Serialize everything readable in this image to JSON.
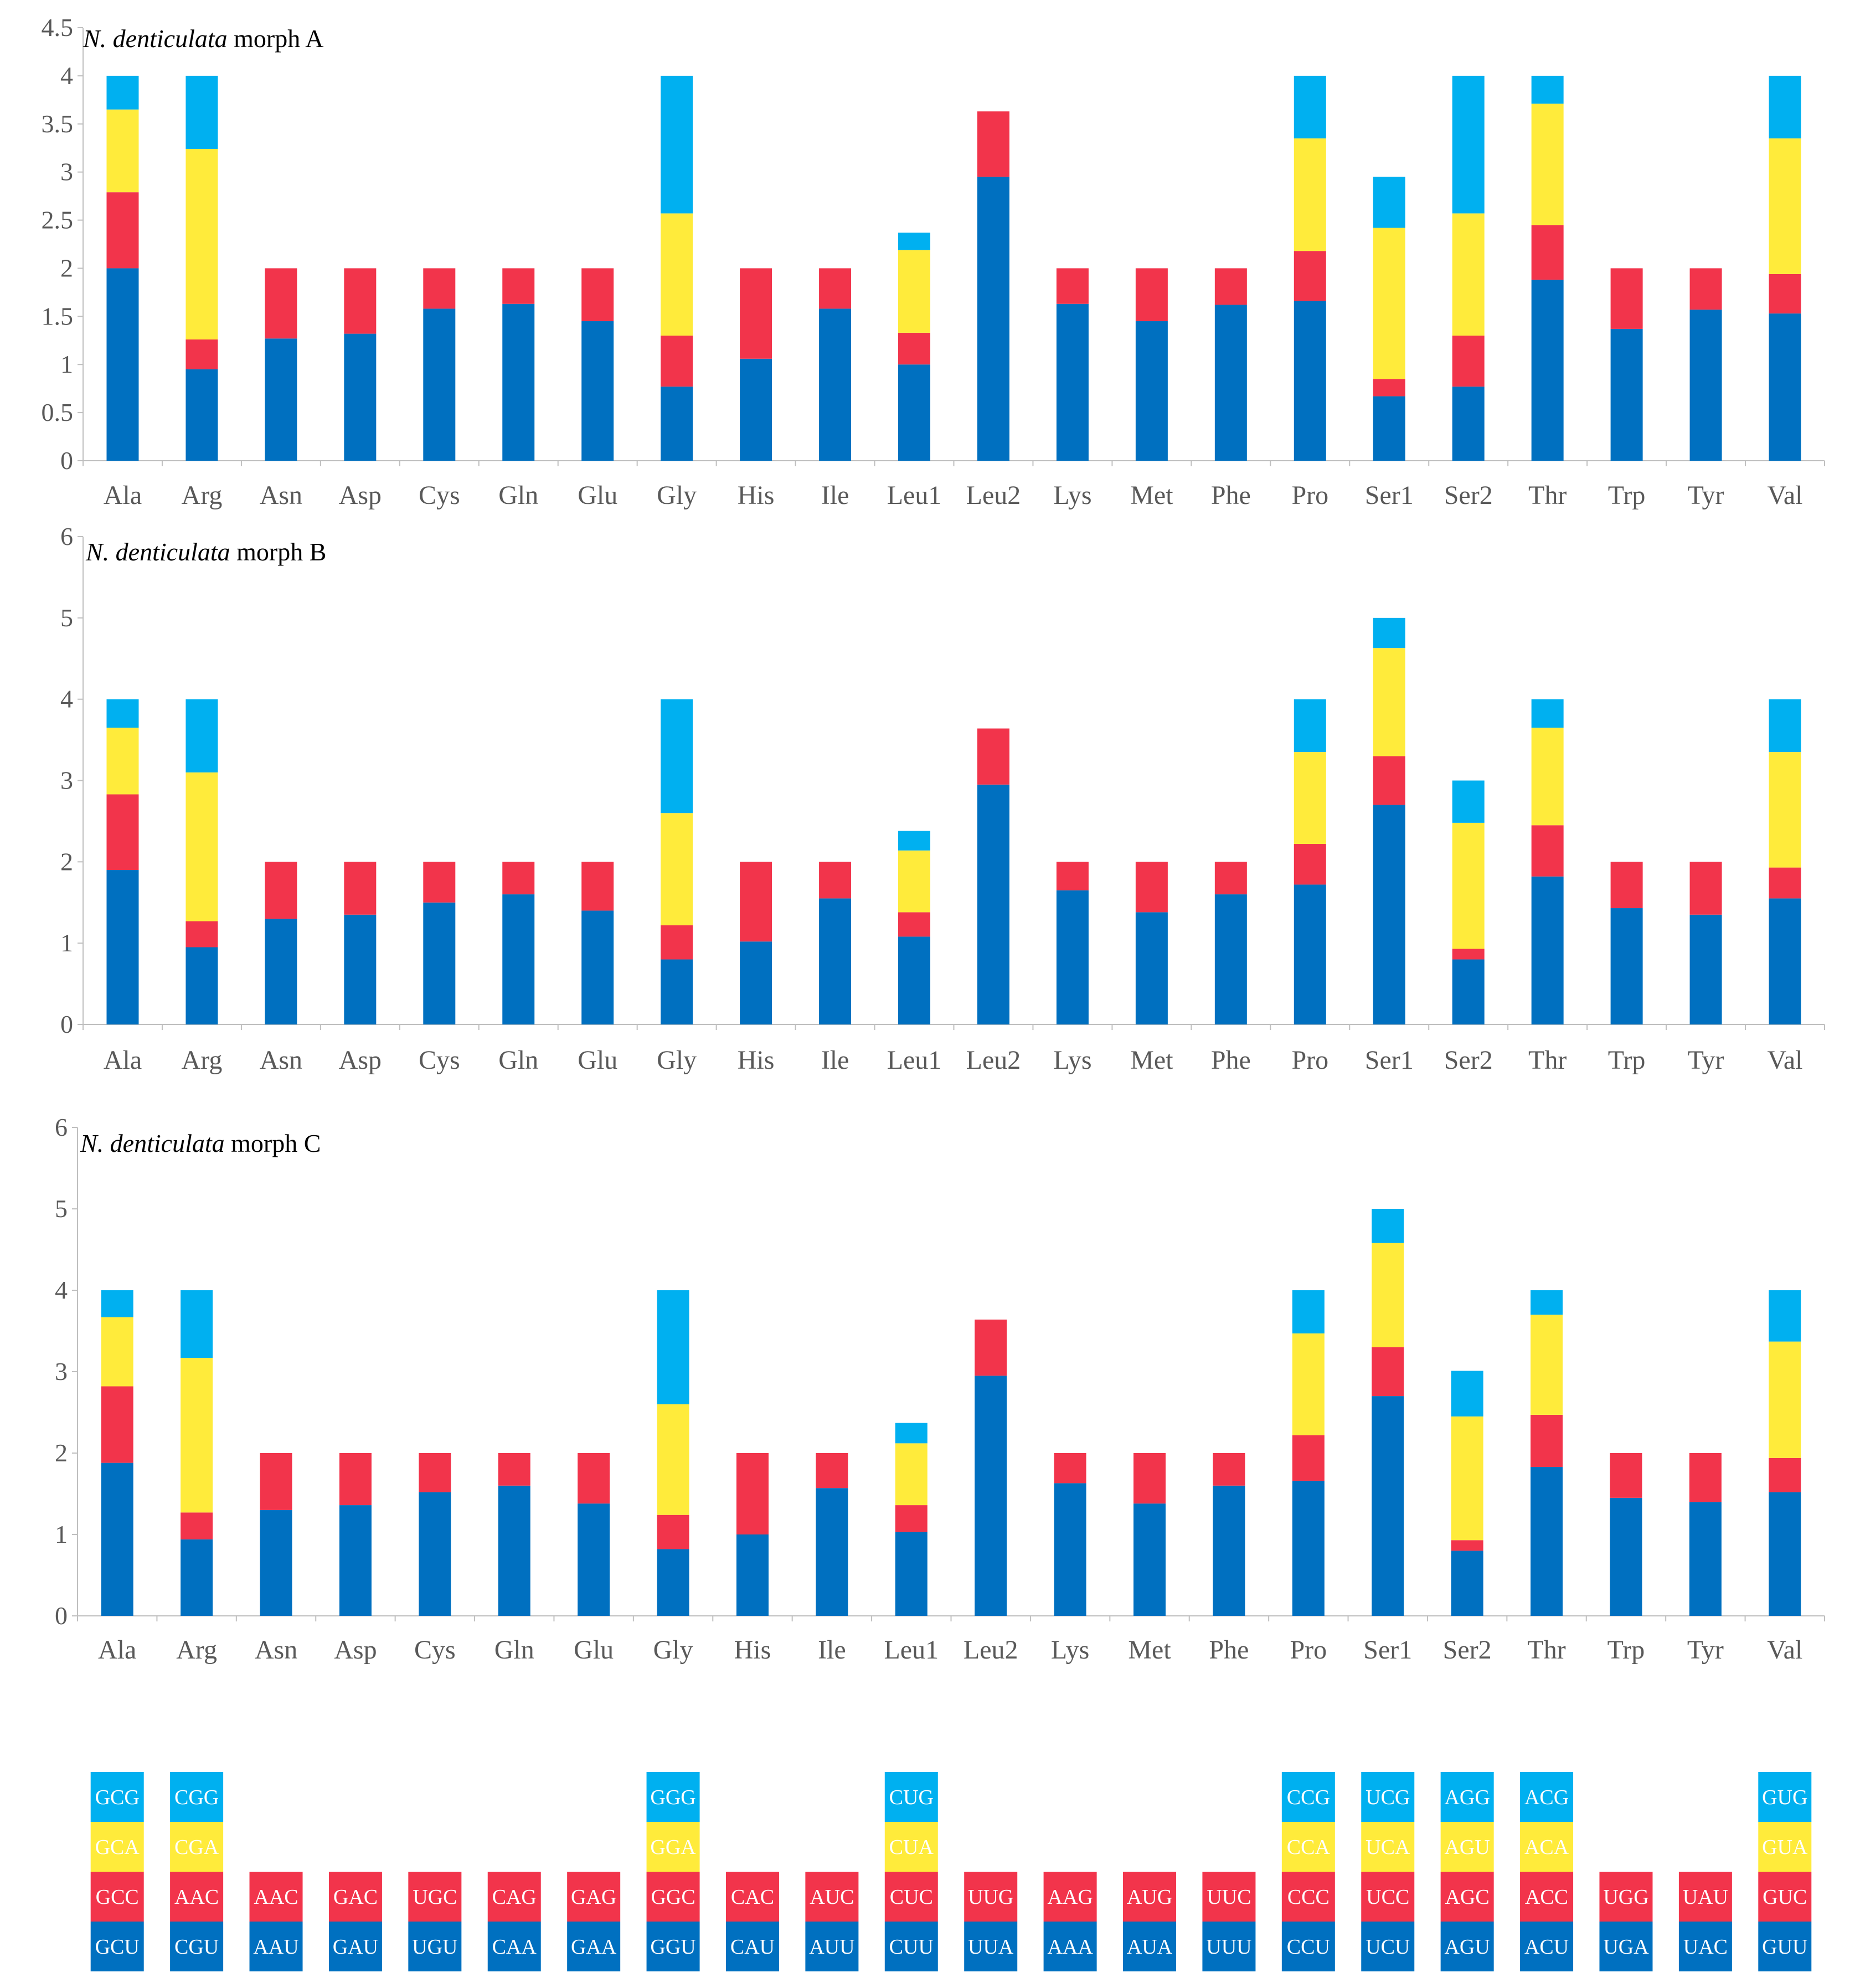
{
  "colors": {
    "third_codon": "#00B0F0",
    "second_codon": "#FFEB3B",
    "first_codon": "#F2344B",
    "base_codon": "#0070C0",
    "axis": "#BFBFBF",
    "tick_text": "#595959"
  },
  "chart_data": [
    {
      "type": "bar",
      "stacked": true,
      "title_italic": "N. denticulata",
      "title_rest": " morph A",
      "categories": [
        "Ala",
        "Arg",
        "Asn",
        "Asp",
        "Cys",
        "Gln",
        "Glu",
        "Gly",
        "His",
        "Ile",
        "Leu1",
        "Leu2",
        "Lys",
        "Met",
        "Phe",
        "Pro",
        "Ser1",
        "Ser2",
        "Thr",
        "Trp",
        "Tyr",
        "Val"
      ],
      "ylim": [
        0,
        4.5
      ],
      "yticks": [
        "0",
        "0.5",
        "1",
        "1.5",
        "2",
        "2.5",
        "3",
        "3.5",
        "4",
        "4.5"
      ],
      "grid": false,
      "series": [
        {
          "values": [
            2.0,
            0.95,
            1.27,
            1.32,
            1.58,
            1.63,
            1.45,
            0.77,
            1.06,
            1.58,
            1.0,
            2.95,
            1.63,
            1.45,
            1.62,
            1.66,
            0.67,
            0.77,
            1.88,
            1.37,
            1.57,
            1.53
          ]
        },
        {
          "values": [
            0.79,
            0.31,
            0.73,
            0.68,
            0.42,
            0.37,
            0.55,
            0.53,
            0.94,
            0.42,
            0.33,
            0.68,
            0.37,
            0.55,
            0.38,
            0.52,
            0.18,
            0.53,
            0.57,
            0.63,
            0.43,
            0.41
          ]
        },
        {
          "values": [
            0.86,
            1.98,
            0,
            0,
            0,
            0,
            0,
            1.27,
            0,
            0,
            0.86,
            0,
            0,
            0,
            0,
            1.17,
            1.57,
            1.27,
            1.26,
            0,
            0,
            1.41
          ]
        },
        {
          "values": [
            0.35,
            0.76,
            0,
            0,
            0,
            0,
            0,
            1.43,
            0,
            0,
            0.18,
            0,
            0,
            0,
            0,
            0.65,
            0.53,
            1.43,
            0.29,
            0,
            0,
            0.65
          ]
        }
      ]
    },
    {
      "type": "bar",
      "stacked": true,
      "title_italic": "N. denticulata",
      "title_rest": " morph B",
      "categories": [
        "Ala",
        "Arg",
        "Asn",
        "Asp",
        "Cys",
        "Gln",
        "Glu",
        "Gly",
        "His",
        "Ile",
        "Leu1",
        "Leu2",
        "Lys",
        "Met",
        "Phe",
        "Pro",
        "Ser1",
        "Ser2",
        "Thr",
        "Trp",
        "Tyr",
        "Val"
      ],
      "ylim": [
        0,
        6
      ],
      "yticks": [
        "0",
        "1",
        "2",
        "3",
        "4",
        "5",
        "6"
      ],
      "grid": false,
      "series": [
        {
          "values": [
            1.9,
            0.95,
            1.3,
            1.35,
            1.5,
            1.6,
            1.4,
            0.8,
            1.02,
            1.55,
            1.08,
            2.95,
            1.65,
            1.38,
            1.6,
            1.72,
            2.7,
            0.8,
            1.82,
            1.43,
            1.35,
            1.55
          ]
        },
        {
          "values": [
            0.93,
            0.32,
            0.7,
            0.65,
            0.5,
            0.4,
            0.6,
            0.42,
            0.98,
            0.45,
            0.3,
            0.69,
            0.35,
            0.62,
            0.4,
            0.5,
            0.6,
            0.13,
            0.63,
            0.57,
            0.65,
            0.38
          ]
        },
        {
          "values": [
            0.82,
            1.83,
            0,
            0,
            0,
            0,
            0,
            1.38,
            0,
            0,
            0.76,
            0,
            0,
            0,
            0,
            1.13,
            1.33,
            1.55,
            1.2,
            0,
            0,
            1.42
          ]
        },
        {
          "values": [
            0.35,
            0.9,
            0,
            0,
            0,
            0,
            0,
            1.4,
            0,
            0,
            0.24,
            0,
            0,
            0,
            0,
            0.65,
            0.37,
            0.52,
            0.35,
            0,
            0,
            0.65
          ]
        }
      ]
    },
    {
      "type": "bar",
      "stacked": true,
      "title_italic": "N. denticulata",
      "title_rest": " morph C",
      "categories": [
        "Ala",
        "Arg",
        "Asn",
        "Asp",
        "Cys",
        "Gln",
        "Glu",
        "Gly",
        "His",
        "Ile",
        "Leu1",
        "Leu2",
        "Lys",
        "Met",
        "Phe",
        "Pro",
        "Ser1",
        "Ser2",
        "Thr",
        "Trp",
        "Tyr",
        "Val"
      ],
      "ylim": [
        0,
        6
      ],
      "yticks": [
        "0",
        "1",
        "2",
        "3",
        "4",
        "5",
        "6"
      ],
      "grid": false,
      "series": [
        {
          "values": [
            1.88,
            0.94,
            1.3,
            1.36,
            1.52,
            1.6,
            1.38,
            0.82,
            1.0,
            1.57,
            1.03,
            2.95,
            1.63,
            1.38,
            1.6,
            1.66,
            2.7,
            0.8,
            1.83,
            1.45,
            1.4,
            1.52
          ]
        },
        {
          "values": [
            0.94,
            0.33,
            0.7,
            0.64,
            0.48,
            0.4,
            0.62,
            0.42,
            1.0,
            0.43,
            0.33,
            0.69,
            0.37,
            0.62,
            0.4,
            0.56,
            0.6,
            0.13,
            0.64,
            0.55,
            0.6,
            0.42
          ]
        },
        {
          "values": [
            0.85,
            1.9,
            0,
            0,
            0,
            0,
            0,
            1.36,
            0,
            0,
            0.76,
            0,
            0,
            0,
            0,
            1.25,
            1.28,
            1.52,
            1.23,
            0,
            0,
            1.43
          ]
        },
        {
          "values": [
            0.33,
            0.83,
            0,
            0,
            0,
            0,
            0,
            1.4,
            0,
            0,
            0.25,
            0,
            0,
            0,
            0,
            0.53,
            0.42,
            0.56,
            0.3,
            0,
            0,
            0.63
          ]
        }
      ]
    }
  ],
  "codon_legend": [
    [
      "GCU",
      "GCC",
      "GCA",
      "GCG"
    ],
    [
      "CGU",
      "AAC",
      "CGA",
      "CGG"
    ],
    [
      "AAU",
      "AAC"
    ],
    [
      "GAU",
      "GAC"
    ],
    [
      "UGU",
      "UGC"
    ],
    [
      "CAA",
      "CAG"
    ],
    [
      "GAA",
      "GAG"
    ],
    [
      "GGU",
      "GGC",
      "GGA",
      "GGG"
    ],
    [
      "CAU",
      "CAC"
    ],
    [
      "AUU",
      "AUC"
    ],
    [
      "CUU",
      "CUC",
      "CUA",
      "CUG"
    ],
    [
      "UUA",
      "UUG"
    ],
    [
      "AAA",
      "AAG"
    ],
    [
      "AUA",
      "AUG"
    ],
    [
      "UUU",
      "UUC"
    ],
    [
      "CCU",
      "CCC",
      "CCA",
      "CCG"
    ],
    [
      "UCU",
      "UCC",
      "UCA",
      "UCG"
    ],
    [
      "AGU",
      "AGC",
      "AGU",
      "AGG"
    ],
    [
      "ACU",
      "ACC",
      "ACA",
      "ACG"
    ],
    [
      "UGA",
      "UGG"
    ],
    [
      "UAC",
      "UAU"
    ],
    [
      "GUU",
      "GUC",
      "GUA",
      "GUG"
    ]
  ]
}
